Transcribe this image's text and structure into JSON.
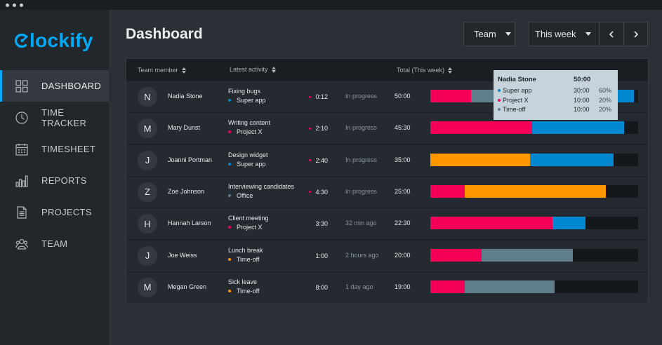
{
  "app": {
    "logo_text": "lockify"
  },
  "sidebar": {
    "items": [
      {
        "label": "DASHBOARD",
        "icon": "dashboard-icon"
      },
      {
        "label": "TIME TRACKER",
        "icon": "clock-icon"
      },
      {
        "label": "TIMESHEET",
        "icon": "calendar-icon"
      },
      {
        "label": "REPORTS",
        "icon": "bar-chart-icon"
      },
      {
        "label": "PROJECTS",
        "icon": "document-icon"
      },
      {
        "label": "TEAM",
        "icon": "team-icon"
      }
    ]
  },
  "header": {
    "title": "Dashboard",
    "team_filter": "Team",
    "week_filter": "This week"
  },
  "colors": {
    "accent": "#03a9f4",
    "super_app": "#0288d1",
    "project_x": "#f50057",
    "time_off": "#607d8b",
    "office": "#607d8b",
    "design": "#ff9800"
  },
  "table": {
    "columns": [
      "Team member",
      "Latest activity",
      "Total (This week)"
    ],
    "rows": [
      {
        "initial": "N",
        "name": "Nadia Stone",
        "activity": "Fixing bugs",
        "project": "Super app",
        "project_color": "#0288d1",
        "duration": "0:12",
        "duration_dot": "#f50057",
        "status": "In progress",
        "total": "50:00",
        "segments": [
          {
            "color": "#f50057",
            "value": 10
          },
          {
            "color": "#607d8b",
            "value": 10
          },
          {
            "color": "#0288d1",
            "value": 30
          }
        ]
      },
      {
        "initial": "M",
        "name": "Mary Dunst",
        "activity": "Writing content",
        "project": "Project X",
        "project_color": "#f50057",
        "duration": "2:10",
        "duration_dot": "#f50057",
        "status": "In progress",
        "total": "45:30",
        "segments": [
          {
            "color": "#f50057",
            "value": 25
          },
          {
            "color": "#0288d1",
            "value": 22.5
          }
        ]
      },
      {
        "initial": "J",
        "name": "Joanni Portman",
        "activity": "Design widget",
        "project": "Super app",
        "project_color": "#0288d1",
        "duration": "2:40",
        "duration_dot": "#f50057",
        "status": "In progress",
        "total": "35:00",
        "segments": [
          {
            "color": "#ff9800",
            "value": 24.5
          },
          {
            "color": "#0288d1",
            "value": 20.5
          }
        ]
      },
      {
        "initial": "Z",
        "name": "Zoe Johnson",
        "activity": "Interviewing candidates",
        "project": "Office",
        "project_color": "#607d8b",
        "duration": "4:30",
        "duration_dot": "#f50057",
        "status": "In progress",
        "total": "25:00",
        "segments": [
          {
            "color": "#f50057",
            "value": 8.5
          },
          {
            "color": "#ff9800",
            "value": 34.5
          }
        ]
      },
      {
        "initial": "H",
        "name": "Hannah Larson",
        "activity": "Client meeting",
        "project": "Project X",
        "project_color": "#f50057",
        "duration": "3:30",
        "duration_dot": "",
        "status": "32 min ago",
        "total": "22:30",
        "segments": [
          {
            "color": "#f50057",
            "value": 30
          },
          {
            "color": "#0288d1",
            "value": 8
          }
        ]
      },
      {
        "initial": "J",
        "name": "Joe Weiss",
        "activity": "Lunch break",
        "project": "Time-off",
        "project_color": "#ff9800",
        "duration": "1:00",
        "duration_dot": "",
        "status": "2 hours ago",
        "total": "20:00",
        "segments": [
          {
            "color": "#f50057",
            "value": 12.5
          },
          {
            "color": "#607d8b",
            "value": 22.5
          }
        ]
      },
      {
        "initial": "M",
        "name": "Megan Green",
        "activity": "Sick leave",
        "project": "Time-off",
        "project_color": "#ff9800",
        "duration": "8:00",
        "duration_dot": "",
        "status": "1 day ago",
        "total": "19:00",
        "segments": [
          {
            "color": "#f50057",
            "value": 8.5
          },
          {
            "color": "#607d8b",
            "value": 22
          }
        ]
      }
    ],
    "bar_max": 51
  },
  "tooltip": {
    "name": "Nadia Stone",
    "total": "50:00",
    "items": [
      {
        "label": "Super app",
        "time": "30:00",
        "pct": "60%",
        "color": "#0288d1"
      },
      {
        "label": "Project X",
        "time": "10:00",
        "pct": "20%",
        "color": "#f50057"
      },
      {
        "label": "Time-off",
        "time": "10:00",
        "pct": "20%",
        "color": "#607d8b"
      }
    ]
  }
}
